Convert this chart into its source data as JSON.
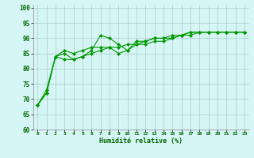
{
  "xlabel": "Humidité relative (%)",
  "bg_color": "#d6f5f5",
  "grid_color": "#aacccc",
  "line_color": "#009900",
  "marker": "D",
  "markersize": 2.0,
  "linewidth": 0.8,
  "xlim": [
    -0.5,
    23.5
  ],
  "ylim": [
    60,
    101
  ],
  "yticks": [
    60,
    65,
    70,
    75,
    80,
    85,
    90,
    95,
    100
  ],
  "xticks": [
    0,
    1,
    2,
    3,
    4,
    5,
    6,
    7,
    8,
    9,
    10,
    11,
    12,
    13,
    14,
    15,
    16,
    17,
    18,
    19,
    20,
    21,
    22,
    23
  ],
  "series": [
    [
      68,
      73,
      84,
      85,
      83,
      84,
      86,
      91,
      90,
      88,
      86,
      89,
      89,
      90,
      90,
      91,
      91,
      92,
      92,
      92,
      92,
      92,
      92,
      92
    ],
    [
      68,
      72,
      84,
      86,
      85,
      86,
      87,
      87,
      87,
      87,
      88,
      88,
      89,
      90,
      90,
      90,
      91,
      92,
      92,
      92,
      92,
      92,
      92,
      92
    ],
    [
      68,
      72,
      84,
      83,
      83,
      84,
      85,
      86,
      87,
      85,
      86,
      88,
      88,
      89,
      89,
      90,
      91,
      91,
      92,
      92,
      92,
      92,
      92,
      92
    ]
  ]
}
